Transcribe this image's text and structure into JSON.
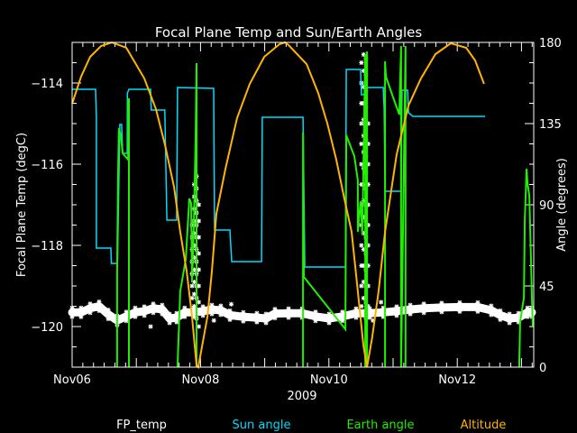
{
  "chart_data": {
    "type": "line",
    "title": "Focal Plane Temp and Sun/Earth Angles",
    "xlabel": "2009",
    "ylabel_left": "Focal Plane Temp (degC)",
    "ylabel_right": "Angle (degrees)",
    "xlim": [
      "2009-11-06 00:00",
      "2009-11-13 04:35"
    ],
    "ylim_left": [
      -121,
      -113
    ],
    "ylim_right": [
      0,
      180
    ],
    "x_ticks": [
      {
        "label": "Nov06",
        "time": "2009-11-06 00:00"
      },
      {
        "label": "Nov08",
        "time": "2009-11-08 00:00"
      },
      {
        "label": "Nov10",
        "time": "2009-11-10 00:00"
      },
      {
        "label": "Nov12",
        "time": "2009-11-12 00:00"
      }
    ],
    "y_ticks_left": [
      "-114",
      "-116",
      "-118",
      "-120"
    ],
    "y_ticks_right": [
      "0",
      "45",
      "90",
      "135",
      "180"
    ],
    "background": "#000000",
    "grid": false,
    "legend_placement": "bottom",
    "series": [
      {
        "name": "FP_temp",
        "axis": "left",
        "color": "#ffffff",
        "marker": "asterisk",
        "points": [
          [
            "2009-11-06 00:00",
            -119.65
          ],
          [
            "2009-11-06 03:20",
            -119.65
          ],
          [
            "2009-11-06 06:45",
            -119.55
          ],
          [
            "2009-11-06 10:05",
            -119.5
          ],
          [
            "2009-11-06 13:30",
            -119.7
          ],
          [
            "2009-11-06 16:50",
            -119.85
          ],
          [
            "2009-11-06 20:15",
            -119.75
          ],
          [
            "2009-11-06 23:35",
            -119.65
          ],
          [
            "2009-11-07 03:00",
            -119.62
          ],
          [
            "2009-11-07 06:20",
            -119.55
          ],
          [
            "2009-11-07 09:40",
            -119.58
          ],
          [
            "2009-11-07 12:25",
            -119.8
          ],
          [
            "2009-11-07 15:05",
            -119.78
          ],
          [
            "2009-11-07 18:05",
            -119.65
          ],
          [
            "2009-11-07 21:30",
            -119.65
          ],
          [
            "2009-11-08 00:55",
            -119.62
          ],
          [
            "2009-11-08 04:15",
            -119.58
          ],
          [
            "2009-11-08 07:35",
            -119.6
          ],
          [
            "2009-11-08 11:00",
            -119.72
          ],
          [
            "2009-11-08 16:00",
            -119.76
          ],
          [
            "2009-11-08 21:05",
            -119.78
          ],
          [
            "2009-11-09 00:30",
            -119.8
          ],
          [
            "2009-11-09 03:50",
            -119.68
          ],
          [
            "2009-11-09 08:55",
            -119.67
          ],
          [
            "2009-11-09 14:00",
            -119.67
          ],
          [
            "2009-11-09 19:00",
            -119.75
          ],
          [
            "2009-11-10 00:05",
            -119.8
          ],
          [
            "2009-11-10 05:05",
            -119.75
          ],
          [
            "2009-11-10 10:10",
            -119.67
          ],
          [
            "2009-11-10 15:15",
            -119.67
          ],
          [
            "2009-11-10 20:20",
            -119.65
          ],
          [
            "2009-11-11 01:20",
            -119.62
          ],
          [
            "2009-11-11 06:25",
            -119.58
          ],
          [
            "2009-11-11 11:30",
            -119.55
          ],
          [
            "2009-11-11 18:10",
            -119.53
          ],
          [
            "2009-11-12 00:55",
            -119.52
          ],
          [
            "2009-11-12 07:40",
            -119.52
          ],
          [
            "2009-11-12 12:40",
            -119.6
          ],
          [
            "2009-11-12 16:05",
            -119.72
          ],
          [
            "2009-11-12 19:30",
            -119.8
          ],
          [
            "2009-11-12 22:55",
            -119.78
          ],
          [
            "2009-11-13 02:15",
            -119.65
          ],
          [
            "2009-11-13 03:55",
            -119.65
          ]
        ],
        "outliers": [
          [
            "2009-11-07 05:20",
            -120.0
          ],
          [
            "2009-11-08 05:00",
            -119.85
          ],
          [
            "2009-11-08 11:30",
            -119.45
          ],
          [
            "2009-11-10 16:30",
            -119.85
          ],
          [
            "2009-11-10 19:30",
            -119.4
          ]
        ],
        "spikes": [
          {
            "time": "2009-11-07 20:50",
            "values": [
              -117.5,
              -117.8,
              -118.1,
              -118.4,
              -118.7,
              -119.0,
              -119.3,
              -119.6
            ]
          },
          {
            "time": "2009-11-07 21:40",
            "values": [
              -116.5,
              -116.8,
              -117.1,
              -117.4,
              -117.7,
              -118.0,
              -118.3,
              -118.6,
              -118.9,
              -119.2,
              -119.5
            ]
          },
          {
            "time": "2009-11-07 22:30",
            "values": [
              -116.3,
              -116.6,
              -116.9,
              -117.2,
              -117.5,
              -117.8,
              -118.1,
              -118.4,
              -118.7,
              -119.0,
              -119.3,
              -119.8
            ]
          },
          {
            "time": "2009-11-07 23:20",
            "values": [
              -117.0,
              -117.4,
              -117.8,
              -118.2,
              -118.6,
              -119.0,
              -119.4,
              -120.0
            ]
          },
          {
            "time": "2009-11-10 12:10",
            "values": [
              -113.5,
              -114.0,
              -114.5,
              -115.0,
              -115.5,
              -116.0,
              -116.5,
              -117.0,
              -117.5,
              -118.0,
              -118.5,
              -119.0,
              -119.5
            ]
          },
          {
            "time": "2009-11-10 13:00",
            "values": [
              -113.3,
              -113.7,
              -114.1,
              -114.5,
              -114.9,
              -115.3,
              -115.7,
              -116.1,
              -116.5,
              -116.9,
              -117.3,
              -117.7,
              -118.1,
              -118.5,
              -118.9,
              -119.3,
              -119.7
            ]
          },
          {
            "time": "2009-11-10 13:50",
            "values": [
              -113.4,
              -113.8,
              -114.2,
              -114.6,
              -115.0,
              -115.4,
              -115.8,
              -116.2,
              -116.6,
              -117.0,
              -117.4,
              -117.8,
              -118.2,
              -118.6,
              -119.0,
              -119.4,
              -119.8
            ]
          },
          {
            "time": "2009-11-10 14:40",
            "values": [
              -115.0,
              -115.5,
              -116.0,
              -116.5,
              -117.0,
              -117.5,
              -118.0,
              -118.5,
              -119.0,
              -119.5
            ]
          }
        ]
      },
      {
        "name": "Sun angle",
        "axis": "right",
        "color": "#00dcff",
        "segments": [
          [
            [
              "2009-11-06 00:00",
              154
            ],
            [
              "2009-11-06 08:45",
              154
            ],
            [
              "2009-11-06 09:05",
              138.5
            ],
            [
              "2009-11-06 09:05",
              66
            ],
            [
              "2009-11-06 14:30",
              66
            ],
            [
              "2009-11-06 14:40",
              57.5
            ],
            [
              "2009-11-06 16:50",
              57.5
            ],
            [
              "2009-11-06 17:00",
              59.5
            ],
            [
              "2009-11-06 17:50",
              134.5
            ],
            [
              "2009-11-06 18:30",
              134.5
            ],
            [
              "2009-11-06 18:55",
              118.5
            ],
            [
              "2009-11-06 20:35",
              118.5
            ],
            [
              "2009-11-06 20:40",
              152
            ],
            [
              "2009-11-06 21:15",
              154
            ],
            [
              "2009-11-07 05:20",
              154
            ],
            [
              "2009-11-07 05:35",
              142.5
            ],
            [
              "2009-11-07 10:40",
              142.5
            ],
            [
              "2009-11-07 11:25",
              81.5
            ],
            [
              "2009-11-07 15:05",
              81.5
            ],
            [
              "2009-11-07 15:25",
              155
            ],
            [
              "2009-11-08 04:55",
              154.5
            ],
            [
              "2009-11-08 05:15",
              76
            ],
            [
              "2009-11-08 11:00",
              76
            ],
            [
              "2009-11-08 11:40",
              58.5
            ],
            [
              "2009-11-08 22:50",
              58.5
            ],
            [
              "2009-11-08 23:05",
              138.5
            ],
            [
              "2009-11-09 14:20",
              138.5
            ],
            [
              "2009-11-09 15:00",
              55.5
            ],
            [
              "2009-11-10 06:10",
              55.5
            ],
            [
              "2009-11-10 06:30",
              165
            ],
            [
              "2009-11-10 11:50",
              165
            ],
            [
              "2009-11-10 12:10",
              151
            ],
            [
              "2009-11-10 13:10",
              151
            ],
            [
              "2009-11-10 13:35",
              155
            ],
            [
              "2009-11-10 20:20",
              155
            ],
            [
              "2009-11-10 20:40",
              143.5
            ],
            [
              "2009-11-10 21:00",
              97.5
            ],
            [
              "2009-11-11 03:00",
              97.5
            ],
            [
              "2009-11-11 03:20",
              153.5
            ],
            [
              "2009-11-11 05:25",
              153.5
            ],
            [
              "2009-11-11 05:45",
              141
            ],
            [
              "2009-11-11 07:25",
              139
            ],
            [
              "2009-11-12 10:25",
              139
            ]
          ]
        ]
      },
      {
        "name": "Earth angle",
        "axis": "right",
        "color": "#22ee00",
        "segments": [
          [
            [
              "2009-11-06 16:50",
              0
            ],
            [
              "2009-11-06 16:50",
              52
            ],
            [
              "2009-11-06 17:10",
              105
            ],
            [
              "2009-11-06 17:30",
              132.5
            ],
            [
              "2009-11-06 18:10",
              128.5
            ],
            [
              "2009-11-06 18:55",
              118.5
            ],
            [
              "2009-11-06 20:55",
              115
            ],
            [
              "2009-11-06 20:55",
              148.5
            ],
            [
              "2009-11-06 21:15",
              148.5
            ],
            [
              "2009-11-06 21:15",
              0
            ]
          ],
          [
            [
              "2009-11-07 15:25",
              0
            ],
            [
              "2009-11-07 16:25",
              42
            ],
            [
              "2009-11-07 18:30",
              60
            ],
            [
              "2009-11-07 19:50",
              93.5
            ],
            [
              "2009-11-07 20:30",
              91
            ],
            [
              "2009-11-07 20:50",
              47
            ],
            [
              "2009-11-07 21:30",
              78.5
            ],
            [
              "2009-11-07 22:10",
              128.5
            ],
            [
              "2009-11-07 22:30",
              168.5
            ],
            [
              "2009-11-07 22:30",
              0
            ]
          ],
          [
            [
              "2009-11-09 14:20",
              0
            ],
            [
              "2009-11-09 14:20",
              130
            ],
            [
              "2009-11-09 14:40",
              50
            ],
            [
              "2009-11-09 22:25",
              35.5
            ],
            [
              "2009-11-10 06:10",
              21
            ],
            [
              "2009-11-10 06:30",
              128.5
            ],
            [
              "2009-11-10 09:30",
              117
            ],
            [
              "2009-11-10 10:50",
              103.5
            ],
            [
              "2009-11-10 10:50",
              75
            ],
            [
              "2009-11-10 11:50",
              92
            ],
            [
              "2009-11-10 12:30",
              73.5
            ],
            [
              "2009-11-10 13:35",
              173.5
            ],
            [
              "2009-11-10 13:35",
              0
            ],
            [
              "2009-11-10 14:15",
              175
            ],
            [
              "2009-11-10 14:15",
              0
            ]
          ],
          [
            [
              "2009-11-10 21:00",
              0
            ],
            [
              "2009-11-10 21:00",
              169.5
            ],
            [
              "2009-11-10 21:20",
              161
            ],
            [
              "2009-11-10 23:40",
              151
            ],
            [
              "2009-11-11 02:20",
              140
            ],
            [
              "2009-11-11 03:00",
              178
            ],
            [
              "2009-11-11 03:00",
              0
            ],
            [
              "2009-11-11 04:40",
              178
            ],
            [
              "2009-11-11 04:40",
              0
            ]
          ],
          [
            [
              "2009-11-12 23:10",
              0
            ],
            [
              "2009-11-12 23:30",
              25
            ],
            [
              "2009-11-13 00:55",
              38.5
            ],
            [
              "2009-11-13 01:15",
              82
            ],
            [
              "2009-11-13 01:55",
              110
            ],
            [
              "2009-11-13 02:15",
              102
            ],
            [
              "2009-11-13 02:55",
              95
            ],
            [
              "2009-11-13 03:15",
              78.5
            ],
            [
              "2009-11-13 03:55",
              38.5
            ],
            [
              "2009-11-13 04:15",
              22
            ]
          ]
        ]
      },
      {
        "name": "Altitude",
        "axis": "right",
        "color": "#ffb400",
        "segments": [
          [
            [
              "2009-11-06 00:00",
              146
            ],
            [
              "2009-11-06 03:20",
              161
            ],
            [
              "2009-11-06 06:45",
              172
            ],
            [
              "2009-11-06 10:50",
              178
            ],
            [
              "2009-11-06 14:50",
              180
            ],
            [
              "2009-11-06 20:15",
              177
            ],
            [
              "2009-11-07 03:00",
              160
            ],
            [
              "2009-11-07 07:20",
              143
            ],
            [
              "2009-11-07 10:45",
              123
            ],
            [
              "2009-11-07 14:05",
              100
            ],
            [
              "2009-11-07 16:25",
              75
            ],
            [
              "2009-11-07 18:50",
              53
            ],
            [
              "2009-11-07 20:50",
              28
            ],
            [
              "2009-11-07 22:30",
              1
            ],
            [
              "2009-11-07 23:10",
              0
            ],
            [
              "2009-11-08 02:35",
              28
            ],
            [
              "2009-11-08 04:15",
              53
            ],
            [
              "2009-11-08 05:55",
              85
            ],
            [
              "2009-11-08 09:20",
              110
            ],
            [
              "2009-11-08 13:40",
              138
            ],
            [
              "2009-11-08 18:25",
              157
            ],
            [
              "2009-11-08 23:50",
              172
            ],
            [
              "2009-11-09 05:30",
              179
            ],
            [
              "2009-11-09 07:35",
              180
            ],
            [
              "2009-11-09 08:55",
              178.5
            ],
            [
              "2009-11-09 15:40",
              168
            ],
            [
              "2009-11-09 20:00",
              152
            ],
            [
              "2009-11-09 23:25",
              135
            ],
            [
              "2009-11-10 02:45",
              115
            ],
            [
              "2009-11-10 05:50",
              93
            ],
            [
              "2009-11-10 08:30",
              75
            ],
            [
              "2009-11-10 10:50",
              42
            ],
            [
              "2009-11-10 12:55",
              12
            ],
            [
              "2009-11-10 14:15",
              0
            ],
            [
              "2009-11-10 16:15",
              17
            ],
            [
              "2009-11-10 18:35",
              42
            ],
            [
              "2009-11-10 21:00",
              75
            ],
            [
              "2009-11-11 01:20",
              118
            ],
            [
              "2009-11-11 05:45",
              145
            ],
            [
              "2009-11-11 10:25",
              160
            ],
            [
              "2009-11-11 15:50",
              173.5
            ],
            [
              "2009-11-11 21:35",
              179.5
            ],
            [
              "2009-11-12 03:20",
              177
            ],
            [
              "2009-11-12 06:40",
              170
            ],
            [
              "2009-11-12 10:00",
              157
            ]
          ]
        ]
      }
    ]
  }
}
